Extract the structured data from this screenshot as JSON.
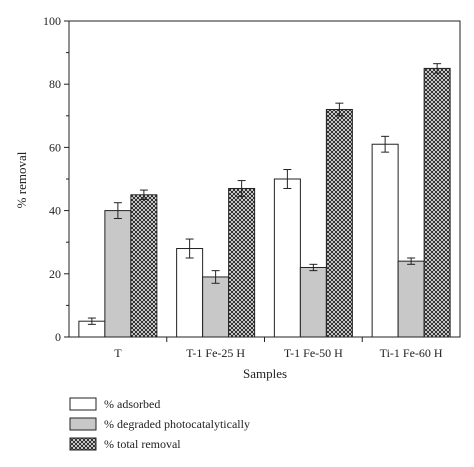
{
  "chart_data": {
    "type": "bar",
    "xlabel": "Samples",
    "ylabel": "% removal",
    "ylim": [
      0,
      100
    ],
    "yticks": [
      0,
      20,
      40,
      60,
      80,
      100
    ],
    "categories": [
      "T",
      "T-1 Fe-25 H",
      "T-1 Fe-50 H",
      "Ti-1 Fe-60 H"
    ],
    "series": [
      {
        "name": "% adsorbed",
        "values": [
          5,
          28,
          50,
          61
        ],
        "errors": [
          1,
          3,
          3,
          2.5
        ],
        "fill": "white"
      },
      {
        "name": "% degraded photocatalytically",
        "values": [
          40,
          19,
          22,
          24
        ],
        "errors": [
          2.5,
          2,
          1,
          1
        ],
        "fill": "grey"
      },
      {
        "name": "% total removal",
        "values": [
          45,
          47,
          72,
          85
        ],
        "errors": [
          1.5,
          2.5,
          2,
          1.5
        ],
        "fill": "crosshatch"
      }
    ],
    "legend_position": "bottom-left",
    "grid": false,
    "colors": {
      "axis": "#222222",
      "white_fill": "#ffffff",
      "grey_fill": "#c8c8c8",
      "hatch": "#222222"
    }
  }
}
